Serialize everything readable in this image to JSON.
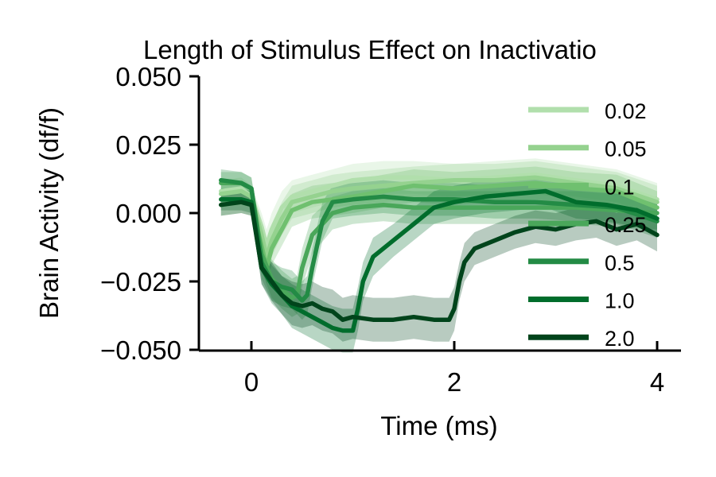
{
  "chart_data": {
    "type": "line",
    "title": "Length of Stimulus Effect on Inactivatio",
    "xlabel": "Time (ms)",
    "ylabel": "Brain Activity (df/f)",
    "xlim": [
      -0.35,
      4.1
    ],
    "ylim": [
      -0.05,
      0.05
    ],
    "xticks": [
      0,
      2,
      4
    ],
    "xtick_labels": [
      "0",
      "2",
      "4"
    ],
    "yticks": [
      -0.05,
      -0.025,
      0.0,
      0.025,
      0.05
    ],
    "ytick_labels": [
      "−0.050",
      "−0.025",
      "0.000",
      "0.025",
      "0.050"
    ],
    "grid": false,
    "legend_position": "right",
    "shaded_error_band": true,
    "series": [
      {
        "name": "0.02",
        "color": "#b1dfac",
        "x": [
          -0.3,
          -0.1,
          0.0,
          0.1,
          0.15,
          0.2,
          0.3,
          0.4,
          0.6,
          0.8,
          1.0,
          1.3,
          1.6,
          2.0,
          2.4,
          2.8,
          3.2,
          3.6,
          4.0
        ],
        "y": [
          0.008,
          0.009,
          0.006,
          -0.005,
          -0.012,
          -0.006,
          0.002,
          0.006,
          0.008,
          0.01,
          0.012,
          0.013,
          0.013,
          0.012,
          0.013,
          0.014,
          0.012,
          0.01,
          0.005
        ],
        "err": [
          0.004,
          0.004,
          0.004,
          0.005,
          0.006,
          0.006,
          0.006,
          0.006,
          0.006,
          0.006,
          0.006,
          0.006,
          0.006,
          0.006,
          0.006,
          0.006,
          0.006,
          0.006,
          0.006
        ]
      },
      {
        "name": "0.05",
        "color": "#95d28f",
        "x": [
          -0.3,
          -0.1,
          0.0,
          0.1,
          0.15,
          0.2,
          0.3,
          0.4,
          0.6,
          0.8,
          1.0,
          1.3,
          1.6,
          2.0,
          2.4,
          2.8,
          3.2,
          3.6,
          4.0
        ],
        "y": [
          0.007,
          0.008,
          0.006,
          -0.008,
          -0.016,
          -0.01,
          -0.002,
          0.004,
          0.006,
          0.008,
          0.009,
          0.01,
          0.011,
          0.012,
          0.012,
          0.013,
          0.011,
          0.009,
          0.004
        ],
        "err": [
          0.004,
          0.004,
          0.004,
          0.005,
          0.006,
          0.006,
          0.006,
          0.006,
          0.006,
          0.006,
          0.006,
          0.006,
          0.006,
          0.006,
          0.006,
          0.006,
          0.006,
          0.006,
          0.006
        ]
      },
      {
        "name": "0.1",
        "color": "#6fc06f",
        "x": [
          -0.3,
          -0.1,
          0.0,
          0.1,
          0.15,
          0.2,
          0.3,
          0.4,
          0.6,
          0.8,
          1.0,
          1.3,
          1.6,
          2.0,
          2.4,
          2.8,
          3.2,
          3.6,
          4.0
        ],
        "y": [
          0.003,
          0.004,
          0.003,
          -0.012,
          -0.02,
          -0.013,
          -0.006,
          0.001,
          0.004,
          0.005,
          0.006,
          0.008,
          0.01,
          0.009,
          0.01,
          0.011,
          0.009,
          0.008,
          0.002
        ],
        "err": [
          0.004,
          0.004,
          0.004,
          0.005,
          0.006,
          0.006,
          0.006,
          0.006,
          0.006,
          0.006,
          0.006,
          0.006,
          0.006,
          0.006,
          0.006,
          0.006,
          0.006,
          0.006,
          0.006
        ]
      },
      {
        "name": "0.25",
        "color": "#4aa75a",
        "x": [
          -0.3,
          -0.1,
          0.0,
          0.1,
          0.2,
          0.3,
          0.4,
          0.45,
          0.5,
          0.6,
          0.8,
          1.0,
          1.3,
          1.6,
          2.0,
          2.4,
          2.8,
          3.2,
          3.6,
          4.0
        ],
        "y": [
          0.011,
          0.011,
          0.009,
          -0.015,
          -0.024,
          -0.028,
          -0.031,
          -0.03,
          -0.02,
          -0.008,
          0.0,
          0.002,
          0.003,
          0.002,
          0.002,
          0.002,
          0.002,
          0.002,
          0.001,
          0.0
        ],
        "err": [
          0.004,
          0.004,
          0.004,
          0.006,
          0.007,
          0.007,
          0.007,
          0.007,
          0.007,
          0.007,
          0.006,
          0.006,
          0.006,
          0.006,
          0.006,
          0.006,
          0.006,
          0.006,
          0.006,
          0.006
        ]
      },
      {
        "name": "0.5",
        "color": "#238b45",
        "x": [
          -0.3,
          -0.1,
          0.0,
          0.1,
          0.2,
          0.3,
          0.4,
          0.5,
          0.55,
          0.6,
          0.7,
          0.8,
          1.0,
          1.3,
          1.6,
          2.0,
          2.4,
          2.8,
          3.2,
          3.6,
          4.0
        ],
        "y": [
          0.012,
          0.011,
          0.009,
          -0.018,
          -0.025,
          -0.027,
          -0.028,
          -0.032,
          -0.03,
          -0.02,
          -0.003,
          0.004,
          0.005,
          0.006,
          0.005,
          0.005,
          0.004,
          0.004,
          0.003,
          0.002,
          -0.003
        ],
        "err": [
          0.004,
          0.004,
          0.004,
          0.006,
          0.007,
          0.007,
          0.007,
          0.007,
          0.007,
          0.007,
          0.007,
          0.006,
          0.006,
          0.006,
          0.006,
          0.006,
          0.006,
          0.006,
          0.006,
          0.006,
          0.006
        ]
      },
      {
        "name": "1.0",
        "color": "#006d2c",
        "x": [
          -0.3,
          -0.1,
          0.0,
          0.1,
          0.2,
          0.3,
          0.4,
          0.5,
          0.6,
          0.7,
          0.8,
          0.9,
          1.0,
          1.05,
          1.1,
          1.2,
          1.4,
          1.6,
          1.8,
          2.0,
          2.3,
          2.6,
          2.9,
          3.2,
          3.5,
          3.8,
          4.0
        ],
        "y": [
          0.005,
          0.005,
          0.004,
          -0.02,
          -0.026,
          -0.03,
          -0.034,
          -0.036,
          -0.038,
          -0.04,
          -0.042,
          -0.043,
          -0.043,
          -0.035,
          -0.025,
          -0.016,
          -0.01,
          -0.004,
          0.002,
          0.004,
          0.006,
          0.007,
          0.008,
          0.004,
          0.003,
          0.001,
          -0.002
        ],
        "err": [
          0.004,
          0.004,
          0.004,
          0.006,
          0.007,
          0.007,
          0.008,
          0.008,
          0.008,
          0.008,
          0.008,
          0.008,
          0.008,
          0.008,
          0.007,
          0.007,
          0.006,
          0.006,
          0.006,
          0.006,
          0.006,
          0.006,
          0.006,
          0.006,
          0.006,
          0.006,
          0.006
        ]
      },
      {
        "name": "2.0",
        "color": "#00441b",
        "x": [
          -0.3,
          -0.1,
          0.0,
          0.1,
          0.2,
          0.3,
          0.4,
          0.5,
          0.6,
          0.7,
          0.8,
          0.9,
          1.0,
          1.2,
          1.4,
          1.6,
          1.8,
          1.95,
          2.0,
          2.05,
          2.1,
          2.2,
          2.4,
          2.6,
          2.8,
          3.0,
          3.2,
          3.4,
          3.6,
          3.8,
          4.0
        ],
        "y": [
          0.003,
          0.004,
          0.003,
          -0.02,
          -0.025,
          -0.03,
          -0.033,
          -0.034,
          -0.033,
          -0.035,
          -0.036,
          -0.039,
          -0.038,
          -0.039,
          -0.039,
          -0.038,
          -0.039,
          -0.039,
          -0.035,
          -0.025,
          -0.018,
          -0.013,
          -0.01,
          -0.007,
          -0.005,
          -0.006,
          -0.004,
          -0.003,
          -0.006,
          -0.004,
          -0.008
        ],
        "err": [
          0.004,
          0.004,
          0.004,
          0.006,
          0.007,
          0.007,
          0.008,
          0.008,
          0.008,
          0.008,
          0.008,
          0.008,
          0.008,
          0.008,
          0.008,
          0.008,
          0.008,
          0.008,
          0.008,
          0.007,
          0.007,
          0.006,
          0.006,
          0.006,
          0.006,
          0.006,
          0.006,
          0.006,
          0.006,
          0.006,
          0.006
        ]
      }
    ]
  }
}
